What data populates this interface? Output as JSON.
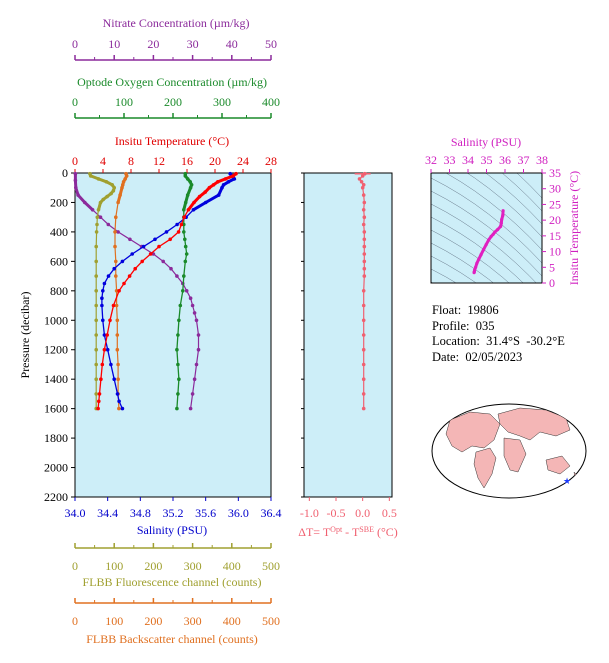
{
  "float_info": {
    "float": "Float:  19806",
    "profile": "Profile:  035",
    "location": "Location:  31.4°S  -30.2°E",
    "date": "Date:  02/05/2023"
  },
  "colors": {
    "temperature": "#ff0000",
    "salinity": "#0000dd",
    "oxygen": "#1a8a2a",
    "nitrate": "#8b2a9b",
    "fluorescence": "#a0a030",
    "backscatter": "#e07020",
    "delta_t": "#f06070",
    "ts_line": "#e020c0",
    "plot_bg": "#cdeef8",
    "axis_salinity_label": "#0000cc",
    "axis_temp_label": "#e00000"
  },
  "chart_data": [
    {
      "type": "line",
      "panel": "main-profile",
      "ylabel": "Pressure (decibar)",
      "ylim": [
        2200,
        0
      ],
      "yticks": [
        0,
        200,
        400,
        600,
        800,
        1000,
        1200,
        1400,
        1600,
        1800,
        2000,
        2200
      ],
      "axes": {
        "nitrate": {
          "label": "Nitrate Concentration (µm/kg)",
          "ticks": [
            0,
            10,
            20,
            30,
            40,
            50
          ],
          "lim": [
            0,
            50
          ]
        },
        "oxygen": {
          "label": "Optode Oxygen Concentration (µm/kg)",
          "ticks": [
            0,
            100,
            200,
            300,
            400
          ],
          "lim": [
            0,
            400
          ]
        },
        "temperature": {
          "label": "Insitu Temperature (°C)",
          "ticks": [
            0,
            4,
            8,
            12,
            16,
            20,
            24,
            28
          ],
          "lim": [
            0,
            28
          ]
        },
        "salinity": {
          "label": "Salinity (PSU)",
          "ticks": [
            "34.0",
            "34.4",
            "34.8",
            "35.2",
            "35.6",
            "36.0",
            "36.4"
          ],
          "lim": [
            34.0,
            36.4
          ]
        },
        "fluorescence": {
          "label": "FLBB Fluorescence channel (counts)",
          "ticks": [
            0,
            100,
            200,
            300,
            400,
            500
          ],
          "lim": [
            0,
            500
          ]
        },
        "backscatter": {
          "label": "FLBB Backscatter channel (counts)",
          "ticks": [
            0,
            100,
            200,
            300,
            400,
            500
          ],
          "lim": [
            0,
            500
          ]
        }
      },
      "series": [
        {
          "key": "temperature",
          "p": [
            5,
            20,
            40,
            60,
            80,
            100,
            130,
            160,
            200,
            250,
            300,
            350,
            400,
            450,
            500,
            550,
            600,
            650,
            700,
            750,
            800,
            900,
            1000,
            1100,
            1200,
            1300,
            1400,
            1500,
            1550,
            1600
          ],
          "values": [
            23.0,
            22.6,
            21.5,
            20.4,
            19.8,
            19.2,
            18.6,
            17.8,
            17.0,
            16.2,
            15.6,
            15.2,
            14.8,
            13.6,
            12.0,
            10.8,
            9.6,
            8.6,
            7.8,
            7.0,
            6.3,
            5.5,
            5.0,
            4.6,
            4.2,
            3.9,
            3.7,
            3.5,
            3.4,
            3.3
          ]
        },
        {
          "key": "salinity",
          "p": [
            5,
            20,
            40,
            60,
            80,
            100,
            150,
            200,
            250,
            300,
            350,
            400,
            450,
            500,
            550,
            600,
            650,
            700,
            750,
            800,
            850,
            900,
            1000,
            1100,
            1200,
            1300,
            1400,
            1500,
            1550,
            1600
          ],
          "values": [
            35.9,
            35.93,
            35.95,
            35.88,
            35.82,
            35.8,
            35.76,
            35.6,
            35.45,
            35.36,
            35.25,
            35.12,
            34.98,
            34.84,
            34.7,
            34.58,
            34.48,
            34.41,
            34.36,
            34.34,
            34.33,
            34.33,
            34.34,
            34.36,
            34.4,
            34.44,
            34.48,
            34.52,
            34.54,
            34.58
          ]
        },
        {
          "key": "oxygen",
          "p": [
            5,
            20,
            40,
            60,
            80,
            100,
            150,
            200,
            250,
            300,
            350,
            400,
            450,
            500,
            550,
            600,
            700,
            800,
            900,
            1000,
            1100,
            1200,
            1300,
            1400,
            1500,
            1600
          ],
          "values": [
            225,
            225,
            230,
            235,
            238,
            236,
            230,
            226,
            222,
            222,
            222,
            222,
            224,
            226,
            228,
            225,
            222,
            220,
            215,
            212,
            210,
            208,
            210,
            212,
            210,
            208
          ]
        },
        {
          "key": "nitrate",
          "p": [
            5,
            50,
            100,
            150,
            200,
            250,
            300,
            350,
            400,
            450,
            500,
            550,
            600,
            650,
            700,
            750,
            800,
            850,
            900,
            950,
            1000,
            1100,
            1200,
            1300,
            1400,
            1500,
            1600
          ],
          "values": [
            0.1,
            0.1,
            0.2,
            0.8,
            2.5,
            4.5,
            6.5,
            8.5,
            11.0,
            14.0,
            17.0,
            20.0,
            22.5,
            24.5,
            26.0,
            27.5,
            28.5,
            29.5,
            30.0,
            30.5,
            31.0,
            31.5,
            31.5,
            31.0,
            30.5,
            30.0,
            29.5
          ]
        },
        {
          "key": "fluorescence",
          "p": [
            5,
            20,
            40,
            60,
            80,
            100,
            120,
            140,
            160,
            180,
            200,
            250,
            300,
            350,
            400,
            500,
            600,
            700,
            800,
            900,
            1000,
            1100,
            1200,
            1300,
            1400,
            1500,
            1600
          ],
          "values": [
            38,
            40,
            60,
            80,
            95,
            100,
            98,
            92,
            82,
            72,
            65,
            60,
            57,
            56,
            55,
            54,
            54,
            54,
            54,
            54,
            54,
            54,
            54,
            54,
            54,
            54,
            54
          ]
        },
        {
          "key": "backscatter",
          "p": [
            5,
            20,
            40,
            60,
            80,
            100,
            150,
            200,
            300,
            400,
            500,
            600,
            700,
            800,
            900,
            1000,
            1100,
            1200,
            1300,
            1400,
            1500,
            1600
          ],
          "values": [
            130,
            132,
            128,
            124,
            122,
            120,
            115,
            110,
            104,
            102,
            102,
            104,
            104,
            106,
            106,
            108,
            108,
            108,
            110,
            110,
            110,
            112
          ]
        }
      ]
    },
    {
      "type": "line",
      "panel": "delta-t",
      "xlabel": "ΔT= T^Opt - T^SBE (°C)",
      "xticks": [
        "-1.0",
        "-0.5",
        "0.0",
        "0.5"
      ],
      "xlim": [
        -1.1,
        0.55
      ],
      "ylim": [
        2200,
        0
      ],
      "series": [
        {
          "key": "delta_t",
          "p": [
            5,
            20,
            40,
            60,
            80,
            100,
            150,
            200,
            250,
            300,
            350,
            400,
            450,
            500,
            550,
            600,
            650,
            700,
            800,
            900,
            1000,
            1100,
            1200,
            1300,
            1400,
            1500,
            1600
          ],
          "values": [
            0.04,
            0.0,
            -0.06,
            -0.02,
            0.02,
            0.0,
            0.02,
            0.03,
            0.02,
            0.03,
            0.02,
            0.03,
            0.03,
            0.03,
            0.03,
            0.03,
            0.03,
            0.03,
            0.02,
            0.02,
            0.02,
            0.02,
            0.02,
            0.02,
            0.02,
            0.02,
            0.02
          ]
        }
      ]
    },
    {
      "type": "line",
      "panel": "ts-diagram",
      "xlabel": "Salinity (PSU)",
      "ylabel": "Insitu Temperature (°C)",
      "xticks": [
        32,
        33,
        34,
        35,
        36,
        37,
        38
      ],
      "xlim": [
        32,
        38
      ],
      "yticks": [
        0,
        5,
        10,
        15,
        20,
        25,
        30,
        35
      ],
      "ylim": [
        0,
        35
      ],
      "series": [
        {
          "key": "ts",
          "salinity": [
            34.33,
            34.34,
            34.36,
            34.41,
            34.48,
            34.58,
            34.7,
            34.84,
            34.98,
            35.12,
            35.25,
            35.36,
            35.45,
            35.6,
            35.76,
            35.8,
            35.82,
            35.88,
            35.9
          ],
          "temperature": [
            3.3,
            3.6,
            4.2,
            5.0,
            6.3,
            7.5,
            9.0,
            10.6,
            12.2,
            13.7,
            14.8,
            15.5,
            16.2,
            17.0,
            18.0,
            19.0,
            20.2,
            21.5,
            23.0
          ]
        }
      ]
    }
  ]
}
